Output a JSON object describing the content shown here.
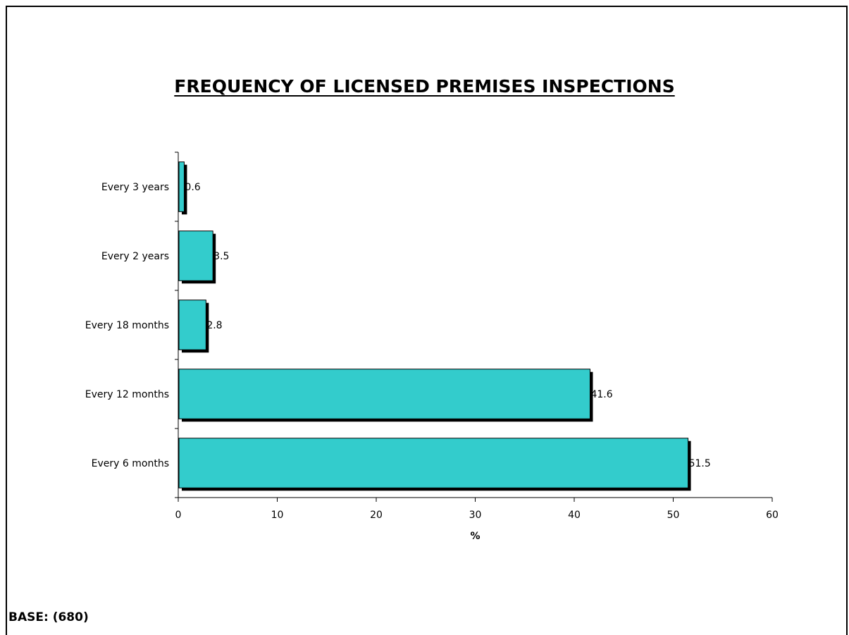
{
  "title": "FREQUENCY OF LICENSED PREMISES INSPECTIONS",
  "base_note": "BASE: (680)",
  "chart_data": {
    "type": "bar",
    "orientation": "horizontal",
    "title": "FREQUENCY OF LICENSED PREMISES INSPECTIONS",
    "categories": [
      "Every 3 years",
      "Every 2 years",
      "Every 18 months",
      "Every 12 months",
      "Every 6 months"
    ],
    "values": [
      0.6,
      3.5,
      2.8,
      41.6,
      51.5
    ],
    "value_labels": [
      "0.6",
      "3.5",
      "2.8",
      "41.6",
      "51.5"
    ],
    "xlabel": "%",
    "ylabel": "",
    "xlim": [
      0,
      60
    ],
    "xticks": [
      0,
      10,
      20,
      30,
      40,
      50,
      60
    ],
    "bar_color": "#33CCCC",
    "shadow_color": "#000000",
    "grid": false
  }
}
